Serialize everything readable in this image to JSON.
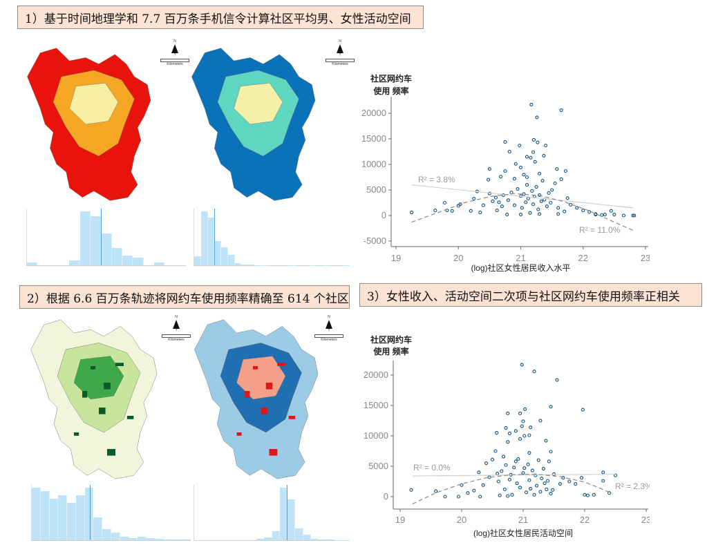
{
  "titles": {
    "t1": "1）基于时间地理学和 7.7 百万条手机信令计算社区平均男、女性活动空间",
    "t2": "2）根据 6.6 百万条轨迹将网约车使用频率精确至 614 个社区",
    "t3": "3）女性收入、活动空间二次项与社区网约车使用频率正相关"
  },
  "map_legend": {
    "north": "N",
    "scale_label": "Kilometers",
    "scale_value": "?"
  },
  "map_colors": {
    "male": [
      "#e8140c",
      "#f5a623",
      "#f6eea0"
    ],
    "female": [
      "#0a72b8",
      "#5ed6c0",
      "#f4f0a8"
    ],
    "usage": [
      "#f2f4dc",
      "#c7e59c",
      "#3ea84a",
      "#0b5a2a"
    ],
    "change": [
      "#9ccbe6",
      "#1f6fb2",
      "#f4a08a",
      "#e0161b"
    ]
  },
  "histograms": {
    "male": {
      "counts": [
        1,
        0,
        0,
        0,
        2,
        22,
        20,
        13,
        7,
        4,
        3,
        0,
        1,
        0,
        0
      ],
      "mean_bin": 7.0
    },
    "female": {
      "counts": [
        16,
        96,
        85,
        43,
        32,
        18,
        4,
        1,
        1,
        0.5,
        0.5,
        0,
        0,
        0,
        0.3,
        0,
        0,
        0.3,
        0,
        0.3,
        0,
        0,
        0.3
      ],
      "mean_bin": 3.0
    },
    "usage": {
      "counts": [
        14,
        13,
        11,
        12,
        10,
        12,
        14,
        6,
        3,
        2,
        1,
        0.5,
        1,
        0.5,
        0.3,
        0.2,
        0.2,
        0.1
      ],
      "mean_bin": 6.6
    },
    "change": {
      "counts": [
        0,
        0,
        0,
        0,
        0,
        0,
        0,
        0,
        0.5,
        1,
        3,
        18,
        14,
        4,
        2,
        0.5,
        0.3,
        0.2,
        0.1,
        0.1
      ],
      "mean_bin": 11.9
    }
  },
  "chart_data": [
    {
      "type": "scatter",
      "ylabel_line1": "社区网约车",
      "ylabel_line2": "使用 频率",
      "xlabel": "(log)社区女性居民收入水平",
      "xlim": [
        19,
        23
      ],
      "ylim": [
        -5000,
        22000
      ],
      "xticks": [
        "19",
        "20",
        "21",
        "22",
        "23"
      ],
      "yticks": [
        "20000",
        "15000",
        "10000",
        "5000",
        "0",
        "-5000"
      ],
      "points": [
        [
          21.17,
          21700
        ],
        [
          21.65,
          20600
        ],
        [
          21.26,
          19200
        ],
        [
          21.21,
          14800
        ],
        [
          21.27,
          14300
        ],
        [
          21.4,
          13700
        ],
        [
          20.75,
          14400
        ],
        [
          20.98,
          13700
        ],
        [
          20.82,
          12500
        ],
        [
          21.2,
          12400
        ],
        [
          21.37,
          11700
        ],
        [
          21.1,
          11500
        ],
        [
          21.16,
          11300
        ],
        [
          21.23,
          10500
        ],
        [
          20.92,
          10100
        ],
        [
          21.58,
          9100
        ],
        [
          21.72,
          8700
        ],
        [
          20.5,
          9100
        ],
        [
          20.75,
          8700
        ],
        [
          21.65,
          7100
        ],
        [
          20.68,
          7600
        ],
        [
          20.48,
          7000
        ],
        [
          21.0,
          9400
        ],
        [
          21.05,
          8000
        ],
        [
          21.3,
          8200
        ],
        [
          20.9,
          7200
        ],
        [
          21.1,
          7500
        ],
        [
          19.25,
          600
        ],
        [
          19.63,
          1000
        ],
        [
          19.78,
          2500
        ],
        [
          19.82,
          1000
        ],
        [
          19.9,
          900
        ],
        [
          20.0,
          1900
        ],
        [
          20.03,
          2200
        ],
        [
          20.2,
          900
        ],
        [
          20.25,
          3300
        ],
        [
          20.3,
          4700
        ],
        [
          20.35,
          600
        ],
        [
          20.4,
          2000
        ],
        [
          20.5,
          4300
        ],
        [
          20.55,
          2800
        ],
        [
          22.0,
          1000
        ],
        [
          22.1,
          700
        ],
        [
          22.2,
          200
        ],
        [
          22.3,
          100
        ],
        [
          22.45,
          900
        ],
        [
          22.5,
          200
        ],
        [
          22.65,
          0
        ],
        [
          22.8,
          0
        ],
        [
          22.82,
          0
        ],
        [
          21.9,
          1500
        ],
        [
          21.8,
          2100
        ],
        [
          21.75,
          3400
        ],
        [
          21.6,
          300
        ],
        [
          21.55,
          6300
        ],
        [
          21.5,
          5000
        ],
        [
          20.8,
          3000
        ],
        [
          20.85,
          4500
        ],
        [
          20.9,
          2000
        ],
        [
          20.95,
          5200
        ],
        [
          21.0,
          3800
        ],
        [
          21.02,
          1500
        ],
        [
          21.05,
          4200
        ],
        [
          21.08,
          2600
        ],
        [
          21.1,
          6000
        ],
        [
          21.12,
          3300
        ],
        [
          21.15,
          500
        ],
        [
          21.18,
          4800
        ],
        [
          21.2,
          2200
        ],
        [
          21.22,
          3700
        ],
        [
          21.25,
          5600
        ],
        [
          21.28,
          1200
        ],
        [
          21.3,
          4000
        ],
        [
          21.33,
          2800
        ],
        [
          21.35,
          6800
        ],
        [
          21.38,
          3100
        ],
        [
          21.42,
          1800
        ],
        [
          21.45,
          4400
        ],
        [
          21.48,
          2500
        ],
        [
          20.7,
          1800
        ],
        [
          20.72,
          4000
        ],
        [
          20.65,
          2600
        ],
        [
          20.6,
          3500
        ],
        [
          20.62,
          1000
        ],
        [
          20.78,
          200
        ],
        [
          21.0,
          200
        ],
        [
          21.3,
          300
        ],
        [
          21.6,
          1500
        ],
        [
          21.7,
          800
        ],
        [
          22.2,
          300
        ],
        [
          22.35,
          200
        ]
      ],
      "linear_fit": {
        "label": "R² = 3.8%",
        "points": [
          [
            19.25,
            6000
          ],
          [
            22.8,
            1500
          ]
        ]
      },
      "quadratic_fit": {
        "label": "R² = 11.0%",
        "points": [
          [
            19.25,
            -1300
          ],
          [
            19.7,
            700
          ],
          [
            20.1,
            2500
          ],
          [
            20.5,
            3700
          ],
          [
            20.9,
            4300
          ],
          [
            21.3,
            3900
          ],
          [
            21.7,
            2700
          ],
          [
            22.1,
            900
          ],
          [
            22.5,
            -1300
          ],
          [
            22.8,
            -2900
          ]
        ]
      }
    },
    {
      "type": "scatter",
      "ylabel_line1": "社区网约车",
      "ylabel_line2": "使用 频率",
      "xlabel": "(log)社区女性居民活动空间",
      "xlim": [
        19,
        23
      ],
      "ylim": [
        -1500,
        22000
      ],
      "xticks": [
        "19",
        "20",
        "21",
        "22",
        "23"
      ],
      "yticks": [
        "20000",
        "15000",
        "10000",
        "5000",
        "0"
      ],
      "points": [
        [
          20.98,
          21700
        ],
        [
          21.18,
          20600
        ],
        [
          21.55,
          19200
        ],
        [
          21.45,
          14800
        ],
        [
          21.97,
          14300
        ],
        [
          21.03,
          14400
        ],
        [
          20.75,
          13700
        ],
        [
          20.95,
          13700
        ],
        [
          21.0,
          12400
        ],
        [
          21.28,
          12500
        ],
        [
          20.72,
          11300
        ],
        [
          21.12,
          11400
        ],
        [
          20.98,
          11600
        ],
        [
          20.57,
          10500
        ],
        [
          20.88,
          10800
        ],
        [
          21.1,
          10100
        ],
        [
          21.02,
          10000
        ],
        [
          20.78,
          10400
        ],
        [
          20.95,
          9500
        ],
        [
          21.37,
          9200
        ],
        [
          20.75,
          9000
        ],
        [
          21.45,
          7400
        ],
        [
          21.42,
          5800
        ],
        [
          20.55,
          7500
        ],
        [
          21.1,
          7200
        ],
        [
          19.18,
          1100
        ],
        [
          19.58,
          900
        ],
        [
          19.73,
          0
        ],
        [
          19.95,
          0
        ],
        [
          20.0,
          1900
        ],
        [
          20.1,
          600
        ],
        [
          20.2,
          1000
        ],
        [
          20.28,
          4000
        ],
        [
          20.3,
          0
        ],
        [
          20.35,
          1900
        ],
        [
          20.4,
          5500
        ],
        [
          20.45,
          3200
        ],
        [
          20.5,
          6100
        ],
        [
          21.6,
          2100
        ],
        [
          21.65,
          3100
        ],
        [
          21.75,
          2500
        ],
        [
          21.85,
          2100
        ],
        [
          21.95,
          3100
        ],
        [
          22.0,
          300
        ],
        [
          22.05,
          200
        ],
        [
          22.15,
          300
        ],
        [
          22.3,
          4000
        ],
        [
          22.3,
          2600
        ],
        [
          22.4,
          600
        ],
        [
          22.5,
          3500
        ],
        [
          20.6,
          2500
        ],
        [
          20.65,
          4200
        ],
        [
          20.7,
          1200
        ],
        [
          20.72,
          5200
        ],
        [
          20.8,
          3600
        ],
        [
          20.82,
          300
        ],
        [
          20.85,
          4800
        ],
        [
          20.9,
          2200
        ],
        [
          20.92,
          6200
        ],
        [
          20.95,
          1500
        ],
        [
          21.0,
          3900
        ],
        [
          21.05,
          700
        ],
        [
          21.08,
          5300
        ],
        [
          21.1,
          2700
        ],
        [
          21.15,
          4300
        ],
        [
          21.18,
          300
        ],
        [
          21.2,
          3500
        ],
        [
          21.22,
          1800
        ],
        [
          21.25,
          6000
        ],
        [
          21.28,
          800
        ],
        [
          21.3,
          3000
        ],
        [
          21.33,
          4600
        ],
        [
          21.38,
          1200
        ],
        [
          21.4,
          2600
        ],
        [
          21.45,
          500
        ],
        [
          21.5,
          3700
        ],
        [
          20.62,
          200
        ],
        [
          20.68,
          6600
        ],
        [
          20.78,
          2800
        ],
        [
          20.88,
          5800
        ],
        [
          21.02,
          4700
        ],
        [
          21.12,
          1300
        ],
        [
          21.35,
          2200
        ],
        [
          21.48,
          1100
        ],
        [
          20.58,
          3800
        ],
        [
          20.75,
          100
        ]
      ],
      "linear_fit": {
        "label": "R² = 0.0%",
        "points": [
          [
            19.2,
            3400
          ],
          [
            22.5,
            3700
          ]
        ]
      },
      "quadratic_fit": {
        "label": "R² = 2.3%",
        "points": [
          [
            19.2,
            -1200
          ],
          [
            19.6,
            700
          ],
          [
            20.0,
            2100
          ],
          [
            20.4,
            3100
          ],
          [
            20.8,
            3600
          ],
          [
            21.2,
            3700
          ],
          [
            21.6,
            3300
          ],
          [
            22.0,
            2400
          ],
          [
            22.2,
            1600
          ],
          [
            22.45,
            500
          ]
        ]
      }
    }
  ]
}
